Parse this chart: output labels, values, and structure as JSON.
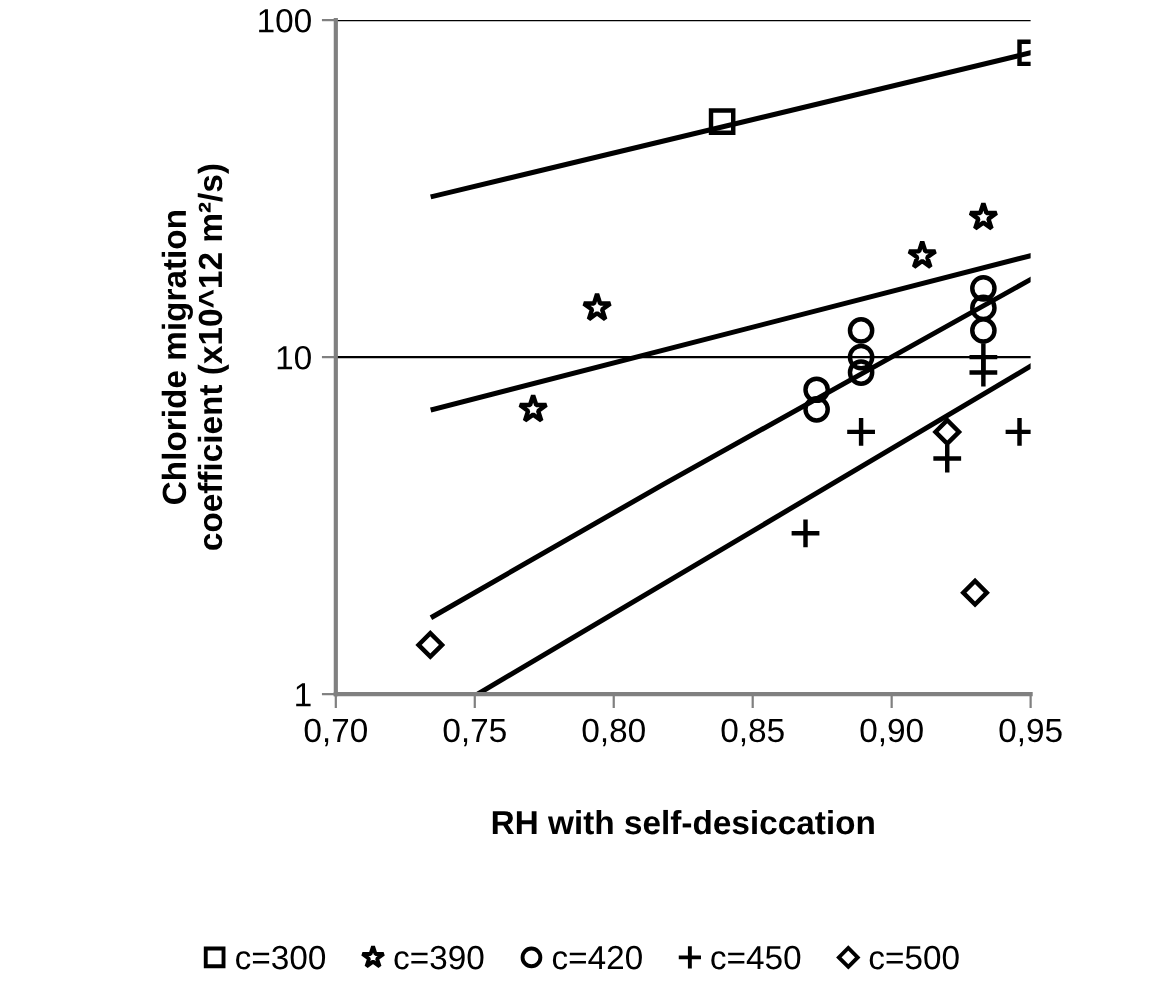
{
  "chart_data": {
    "type": "scatter",
    "xlabel": "RH with self-desiccation",
    "ylabel": "Chloride migration\ncoefficient (x10^12 m²/s)",
    "log": "y",
    "xlim": [
      0.7,
      0.95
    ],
    "xticks": [
      {
        "value": 0.7,
        "label": "0,70"
      },
      {
        "value": 0.75,
        "label": "0,75"
      },
      {
        "value": 0.8,
        "label": "0,80"
      },
      {
        "value": 0.85,
        "label": "0,85"
      },
      {
        "value": 0.9,
        "label": "0,90"
      },
      {
        "value": 0.95,
        "label": "0,95"
      }
    ],
    "ylim": [
      1,
      100
    ],
    "yticks": [
      1,
      10,
      100
    ],
    "grid": "y",
    "legend": "bottom",
    "series": [
      {
        "name": "c=300",
        "marker": "square",
        "color": "#000000",
        "x": [
          0.839,
          0.95
        ],
        "values": [
          50,
          80
        ]
      },
      {
        "name": "c=390",
        "marker": "star",
        "color": "#000000",
        "x": [
          0.771,
          0.794,
          0.911,
          0.933
        ],
        "values": [
          7,
          14,
          20,
          26
        ]
      },
      {
        "name": "c=420",
        "marker": "circle",
        "color": "#000000",
        "x": [
          0.873,
          0.873,
          0.889,
          0.889,
          0.889,
          0.933,
          0.933,
          0.933
        ],
        "values": [
          8,
          7,
          12,
          10,
          9,
          16,
          14,
          12
        ]
      },
      {
        "name": "c=450",
        "marker": "cross",
        "color": "#000000",
        "x": [
          0.869,
          0.889,
          0.92,
          0.933,
          0.933,
          0.946
        ],
        "values": [
          3,
          6,
          5,
          10,
          9,
          6
        ]
      },
      {
        "name": "c=500",
        "marker": "diamond",
        "color": "#000000",
        "x": [
          0.734,
          0.92,
          0.93
        ],
        "values": [
          1.4,
          6,
          2
        ]
      },
      {
        "type": "line",
        "marker": "none",
        "color": "#000000",
        "x": [
          0.735,
          0.95
        ],
        "values": [
          30,
          80
        ]
      },
      {
        "type": "line",
        "marker": "none",
        "color": "#000000",
        "x": [
          0.735,
          0.95
        ],
        "values": [
          7,
          20
        ]
      },
      {
        "type": "line",
        "marker": "none",
        "color": "#000000",
        "x": [
          0.735,
          0.818,
          0.95
        ],
        "values": [
          1.7,
          4.2,
          17
        ]
      },
      {
        "type": "line",
        "marker": "none",
        "color": "#000000",
        "x": [
          0.751,
          0.95
        ],
        "values": [
          1,
          9.4
        ]
      }
    ]
  }
}
